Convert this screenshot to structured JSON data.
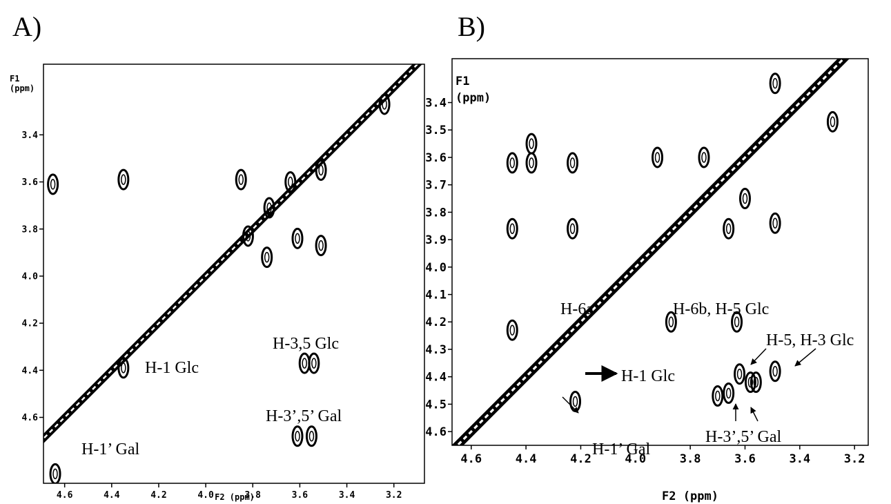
{
  "chart_data": [
    {
      "type": "contour",
      "panel": "A)",
      "ylabel": "F1",
      "ylabel_unit": "(ppm)",
      "xlabel": "F2 (ppm)",
      "xlim": [
        4.69,
        3.07
      ],
      "ylim": [
        3.1,
        4.88
      ],
      "xticks": [
        4.6,
        4.4,
        4.2,
        {
          "value": 4.0,
          "label": "4.0"
        },
        3.8,
        3.6,
        3.4,
        3.2
      ],
      "yticks": [
        3.4,
        3.6,
        3.8,
        {
          "value": 4.0,
          "label": "4.0"
        },
        4.2,
        4.4,
        4.6
      ],
      "x": [
        4.35,
        4.35,
        4.65,
        4.64,
        3.54,
        3.58,
        3.55,
        3.61,
        3.24,
        3.51,
        3.51,
        3.85,
        3.64,
        3.82,
        3.61,
        3.73,
        3.74
      ],
      "y": [
        4.39,
        3.59,
        3.61,
        4.84,
        4.37,
        4.37,
        4.68,
        4.68,
        3.27,
        3.55,
        3.87,
        3.59,
        3.6,
        3.83,
        3.84,
        3.71,
        3.92
      ],
      "annotations": [
        "H-1 Glc",
        "H-1’ Gal",
        "H-3,5 Glc",
        "H-3’,5’ Gal"
      ]
    },
    {
      "type": "contour",
      "panel": "B)",
      "ylabel": "F1",
      "ylabel_unit": "(ppm)",
      "xlabel": "F2 (ppm)",
      "xlim": [
        4.67,
        3.15
      ],
      "ylim": [
        3.24,
        4.65
      ],
      "xticks": [
        4.6,
        4.4,
        4.2,
        {
          "value": 4.0,
          "label": "4.0"
        },
        3.8,
        3.6,
        3.4,
        3.2
      ],
      "yticks": [
        3.4,
        3.5,
        3.6,
        3.7,
        3.8,
        3.9,
        {
          "value": 4.0,
          "label": "4.0"
        },
        4.1,
        4.2,
        4.3,
        4.4,
        4.5,
        4.6
      ],
      "x": [
        4.45,
        4.45,
        4.38,
        4.38,
        4.23,
        4.23,
        4.45,
        3.87,
        3.63,
        3.62,
        3.58,
        3.56,
        3.49,
        3.7,
        3.66,
        3.49,
        3.28,
        3.49,
        3.75,
        3.92,
        3.66,
        3.6,
        4.22
      ],
      "y": [
        3.62,
        3.86,
        3.55,
        3.62,
        3.62,
        3.86,
        4.23,
        4.2,
        4.2,
        4.39,
        4.42,
        4.42,
        4.38,
        4.47,
        4.46,
        3.33,
        3.47,
        3.84,
        3.6,
        3.6,
        3.86,
        3.75,
        4.49
      ],
      "annotations": [
        "H-6a",
        "H-6b, H-5 Glc",
        "H-1 Glc",
        "H-1’ Gal",
        "H-5, H-3 Glc",
        "H-3’,5’ Gal"
      ]
    }
  ]
}
